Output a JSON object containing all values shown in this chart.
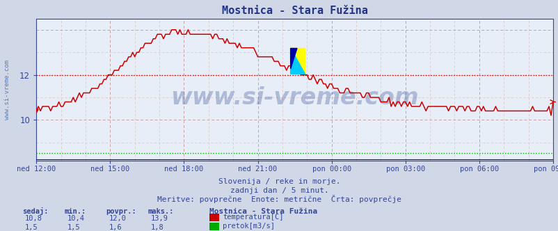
{
  "title": "Mostnica - Stara Fužina",
  "bg_color": "#d0d8e8",
  "plot_bg_color": "#e8eef8",
  "grid_color_major": "#c8a0a0",
  "grid_color_minor": "#ddc8c8",
  "x_labels": [
    "ned 12:00",
    "ned 15:00",
    "ned 18:00",
    "ned 21:00",
    "pon 00:00",
    "pon 03:00",
    "pon 06:00",
    "pon 09:00"
  ],
  "y_ticks_major": [
    10,
    12
  ],
  "y_min": 8.2,
  "y_max": 14.5,
  "temp_color": "#cc0000",
  "flow_color": "#00aa00",
  "flow2_color": "#0000cc",
  "watermark_text": "www.si-vreme.com",
  "watermark_color": "#1a3a88",
  "watermark_alpha": 0.28,
  "watermark_fontsize": 24,
  "subtitle1": "Slovenija / reke in morje.",
  "subtitle2": "zadnji dan / 5 minut.",
  "subtitle3": "Meritve: povprečne  Enote: metrične  Črta: povprečje",
  "legend_title": "Mostnica - Stara Fužina",
  "legend_items": [
    {
      "label": "temperatura[C]",
      "color": "#cc0000"
    },
    {
      "label": "pretok[m3/s]",
      "color": "#00aa00"
    }
  ],
  "stats_headers": [
    "sedaj:",
    "min.:",
    "povpr.:",
    "maks.:"
  ],
  "stats_temp": [
    "10,8",
    "10,4",
    "12,0",
    "13,9"
  ],
  "stats_flow": [
    "1,5",
    "1,5",
    "1,6",
    "1,8"
  ],
  "avg_line_value": 12.0,
  "avg_line_color": "#cc0000",
  "ylabel_text": "www.si-vreme.com",
  "ylabel_color": "#2255aa",
  "title_color": "#223388",
  "text_color": "#334499"
}
